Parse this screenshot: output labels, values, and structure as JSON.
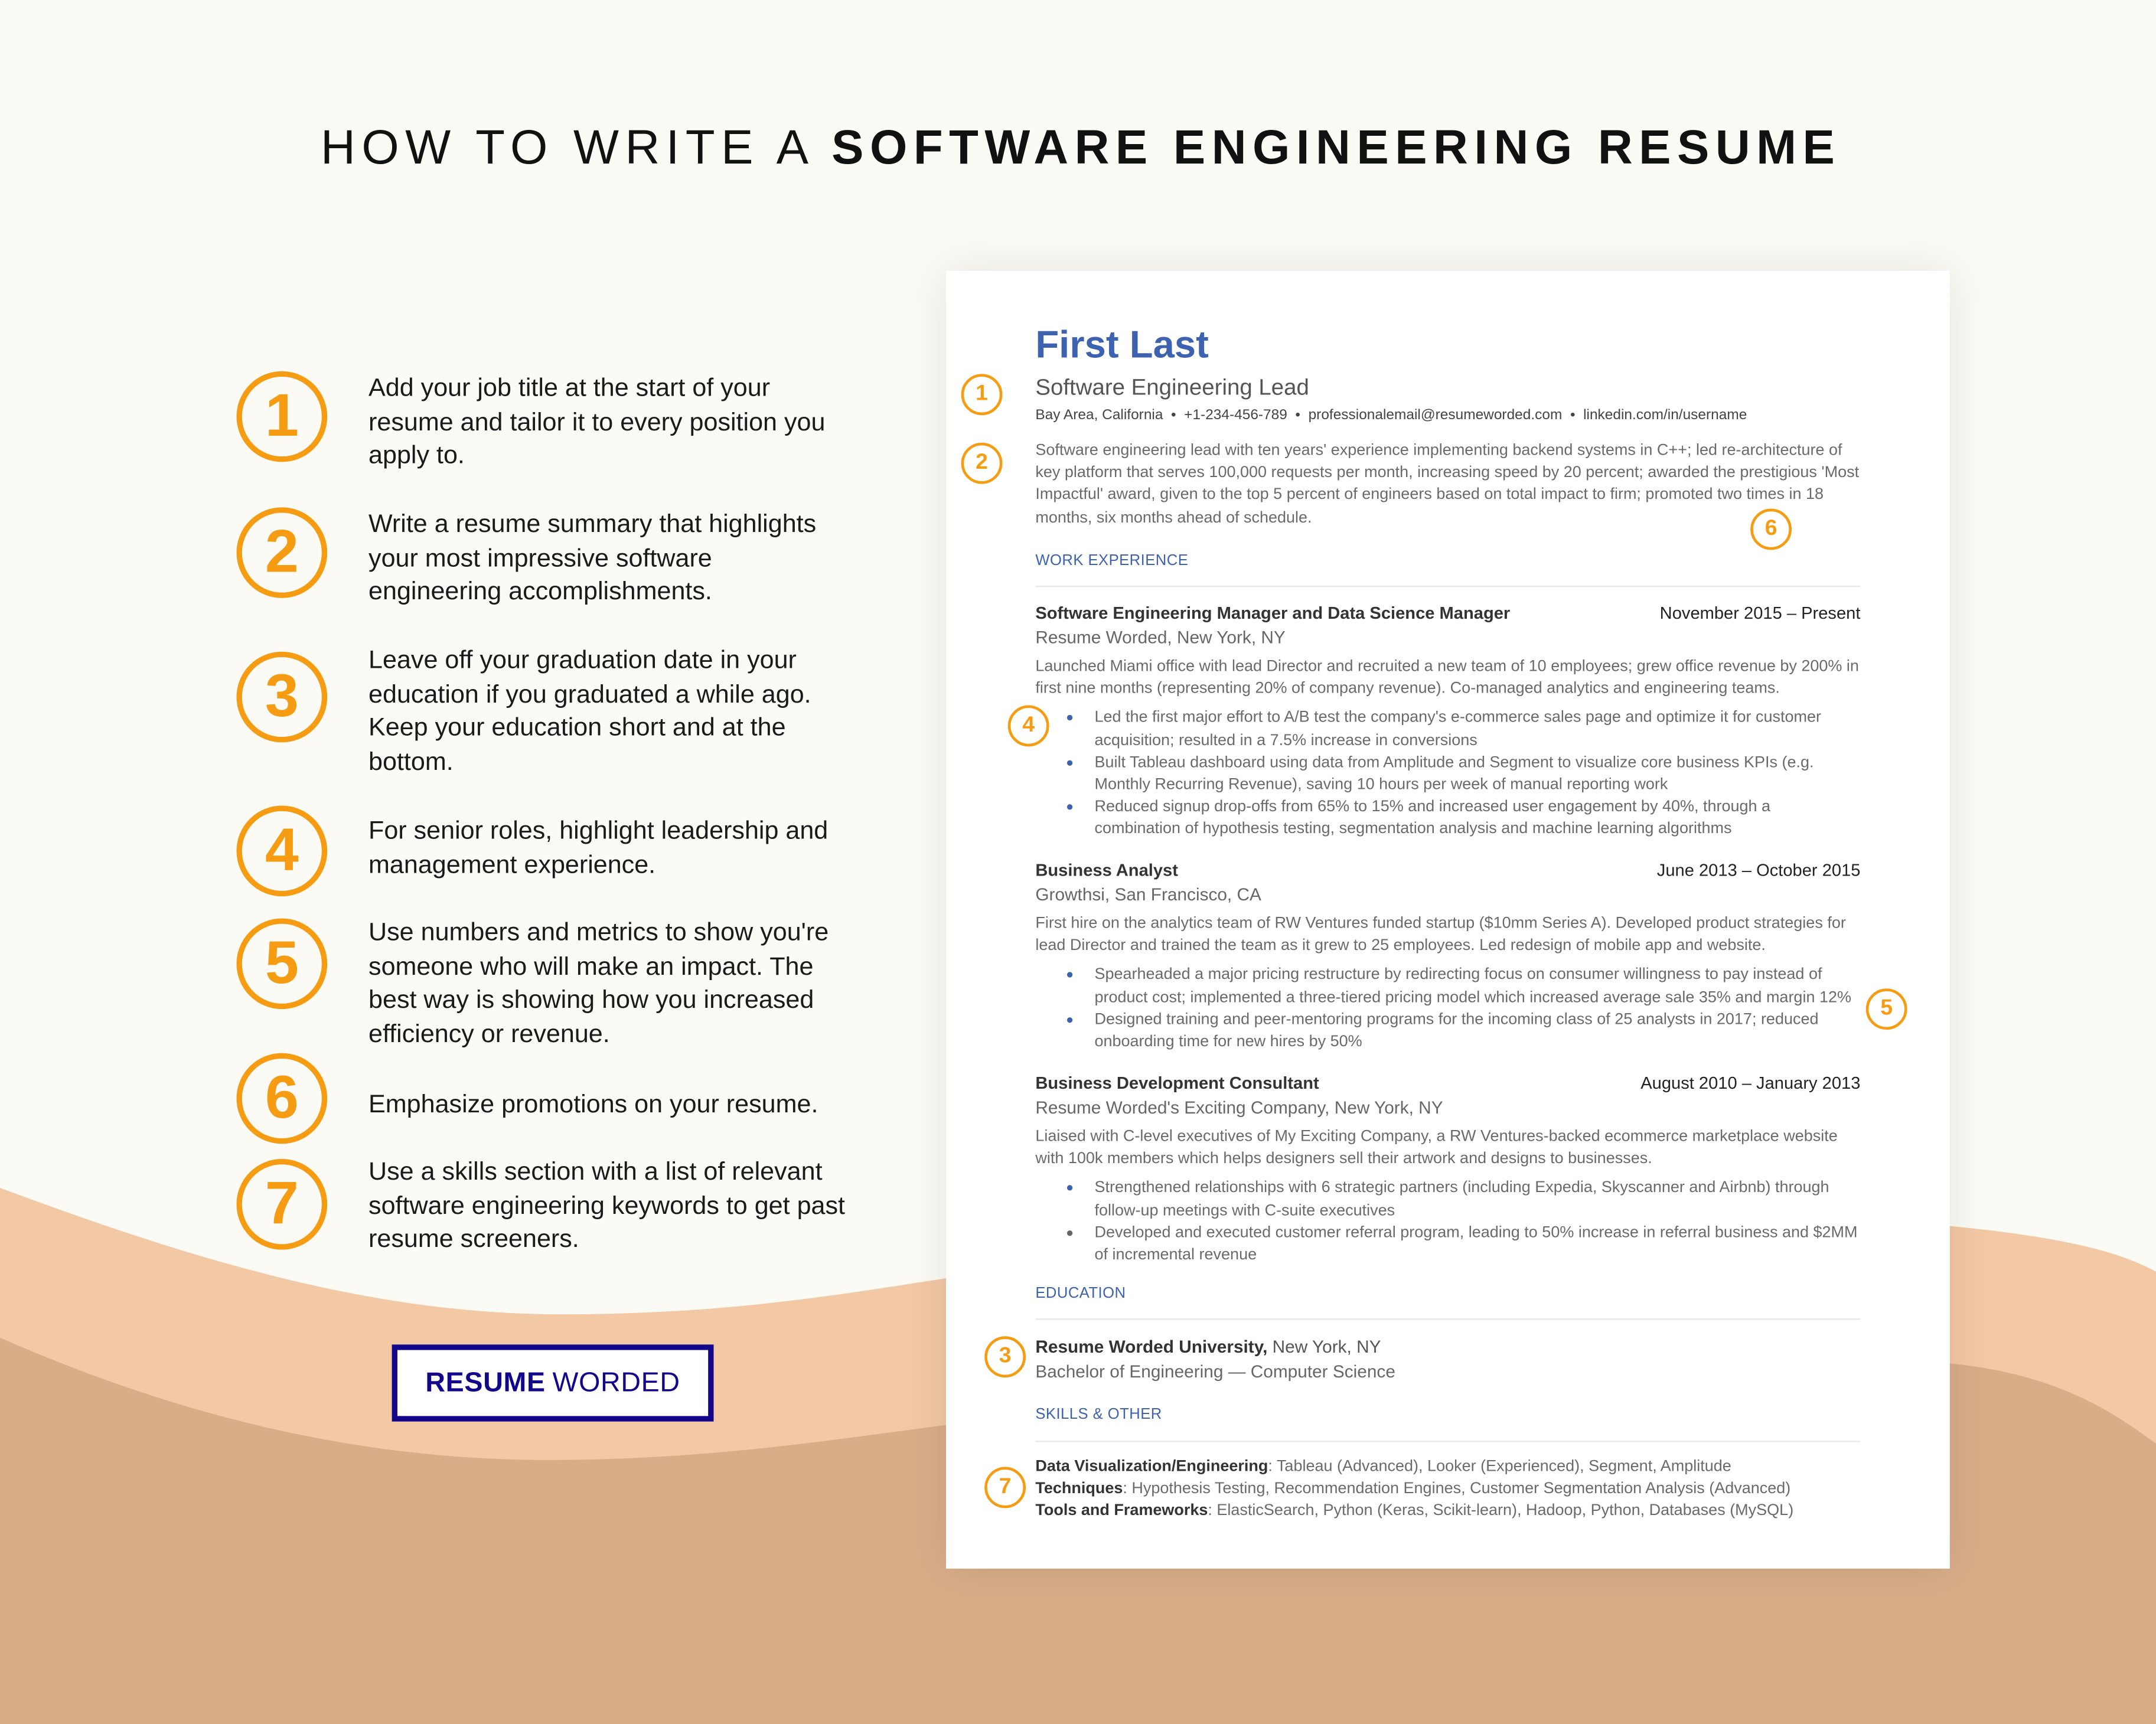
{
  "colors": {
    "accent_orange": "#f59c12",
    "resume_blue": "#3d62b0",
    "logo_navy": "#12078a",
    "bg_cream": "#fbfaf5",
    "bg_peach": "#f3c8a5",
    "bg_tan": "#d9ad88"
  },
  "header": {
    "title_light": "HOW TO WRITE A",
    "title_bold": "SOFTWARE ENGINEERING RESUME"
  },
  "tips": [
    {
      "num": "1",
      "text": "Add your job title at the start of your resume and tailor it to every position you apply to."
    },
    {
      "num": "2",
      "text": "Write a resume summary that highlights your most impressive software engineering accomplishments."
    },
    {
      "num": "3",
      "text": "Leave off your graduation date in your education if you graduated a while ago. Keep your education short and at the bottom."
    },
    {
      "num": "4",
      "text": "For senior roles, highlight leadership and management experience."
    },
    {
      "num": "5",
      "text": "Use numbers and metrics to show you're someone who will make an impact. The best way is showing how you increased efficiency or revenue."
    },
    {
      "num": "6",
      "text": "Emphasize promotions on your resume."
    },
    {
      "num": "7",
      "text": "Use a skills section with a list of relevant software engineering keywords to get past resume screeners."
    }
  ],
  "logo": {
    "bold": "RESUME",
    "light": "WORDED"
  },
  "resume": {
    "name": "First Last",
    "title": "Software Engineering Lead",
    "contact": "Bay Area, California  •  +1-234-456-789  •  professionalemail@resumeworded.com  •  linkedin.com/in/username",
    "summary": "Software engineering lead with ten years' experience implementing backend systems in C++; led re-architecture of key platform that serves 100,000 requests per month, increasing speed by 20 percent; awarded the prestigious 'Most Impactful' award, given to the top 5 percent of engineers based on total impact to firm; promoted two times in 18 months, six months ahead of schedule.",
    "work_heading": "WORK EXPERIENCE",
    "jobs": [
      {
        "title": "Software Engineering Manager and Data Science Manager",
        "date": "November 2015 – Present",
        "company": "Resume Worded, New York, NY",
        "desc": "Launched Miami office with lead Director and recruited a new team of 10 employees; grew office revenue by 200% in first nine months (representing 20% of company revenue). Co-managed analytics and engineering teams.",
        "bullets": [
          "Led the first major effort to A/B test the company's e-commerce sales page and optimize it for customer acquisition; resulted in a 7.5% increase in conversions",
          "Built Tableau dashboard using data from Amplitude and Segment to visualize core business KPIs (e.g. Monthly Recurring Revenue), saving 10 hours per week of manual reporting work",
          "Reduced signup drop-offs from 65% to 15% and increased user engagement by 40%, through a combination of hypothesis testing, segmentation analysis and machine learning algorithms"
        ]
      },
      {
        "title": "Business Analyst",
        "date": "June 2013 – October 2015",
        "company": "Growthsi, San Francisco, CA",
        "desc": "First hire on the analytics team of RW Ventures funded startup ($10mm Series A). Developed product strategies for lead Director and trained the team as it grew to 25 employees. Led redesign of mobile app and website.",
        "bullets": [
          "Spearheaded a major pricing restructure by redirecting focus on consumer willingness to pay instead of product cost; implemented a three-tiered pricing model which increased average sale 35% and margin 12%",
          "Designed training and peer-mentoring programs for the incoming class of 25 analysts in 2017; reduced onboarding time for new hires by 50%"
        ]
      },
      {
        "title": "Business Development Consultant",
        "date": "August 2010 – January 2013",
        "company": "Resume Worded's Exciting Company, New York, NY",
        "desc": "Liaised with C-level executives of My Exciting Company, a RW Ventures-backed ecommerce marketplace website with 100k members which helps designers sell their artwork and designs to businesses.",
        "bullets": [
          "Strengthened relationships with 6 strategic partners (including Expedia, Skyscanner and Airbnb) through follow-up meetings with C-suite executives",
          "Developed and executed customer referral program, leading to 50% increase in referral business and $2MM of incremental revenue"
        ]
      }
    ],
    "education_heading": "EDUCATION",
    "school": "Resume Worded University,",
    "school_location": " New York, NY",
    "degree": "Bachelor of Engineering — Computer Science",
    "skills_heading": "SKILLS & OTHER",
    "skills": [
      {
        "label": "Data Visualization/Engineering",
        "value": ": Tableau (Advanced), Looker (Experienced), Segment, Amplitude"
      },
      {
        "label": "Techniques",
        "value": ": Hypothesis Testing, Recommendation Engines, Customer Segmentation Analysis (Advanced)"
      },
      {
        "label": "Tools and Frameworks",
        "value": ": ElasticSearch, Python (Keras, Scikit-learn), Hadoop, Python, Databases (MySQL)"
      }
    ],
    "markers": [
      "1",
      "2",
      "6",
      "4",
      "5",
      "3",
      "7"
    ]
  }
}
